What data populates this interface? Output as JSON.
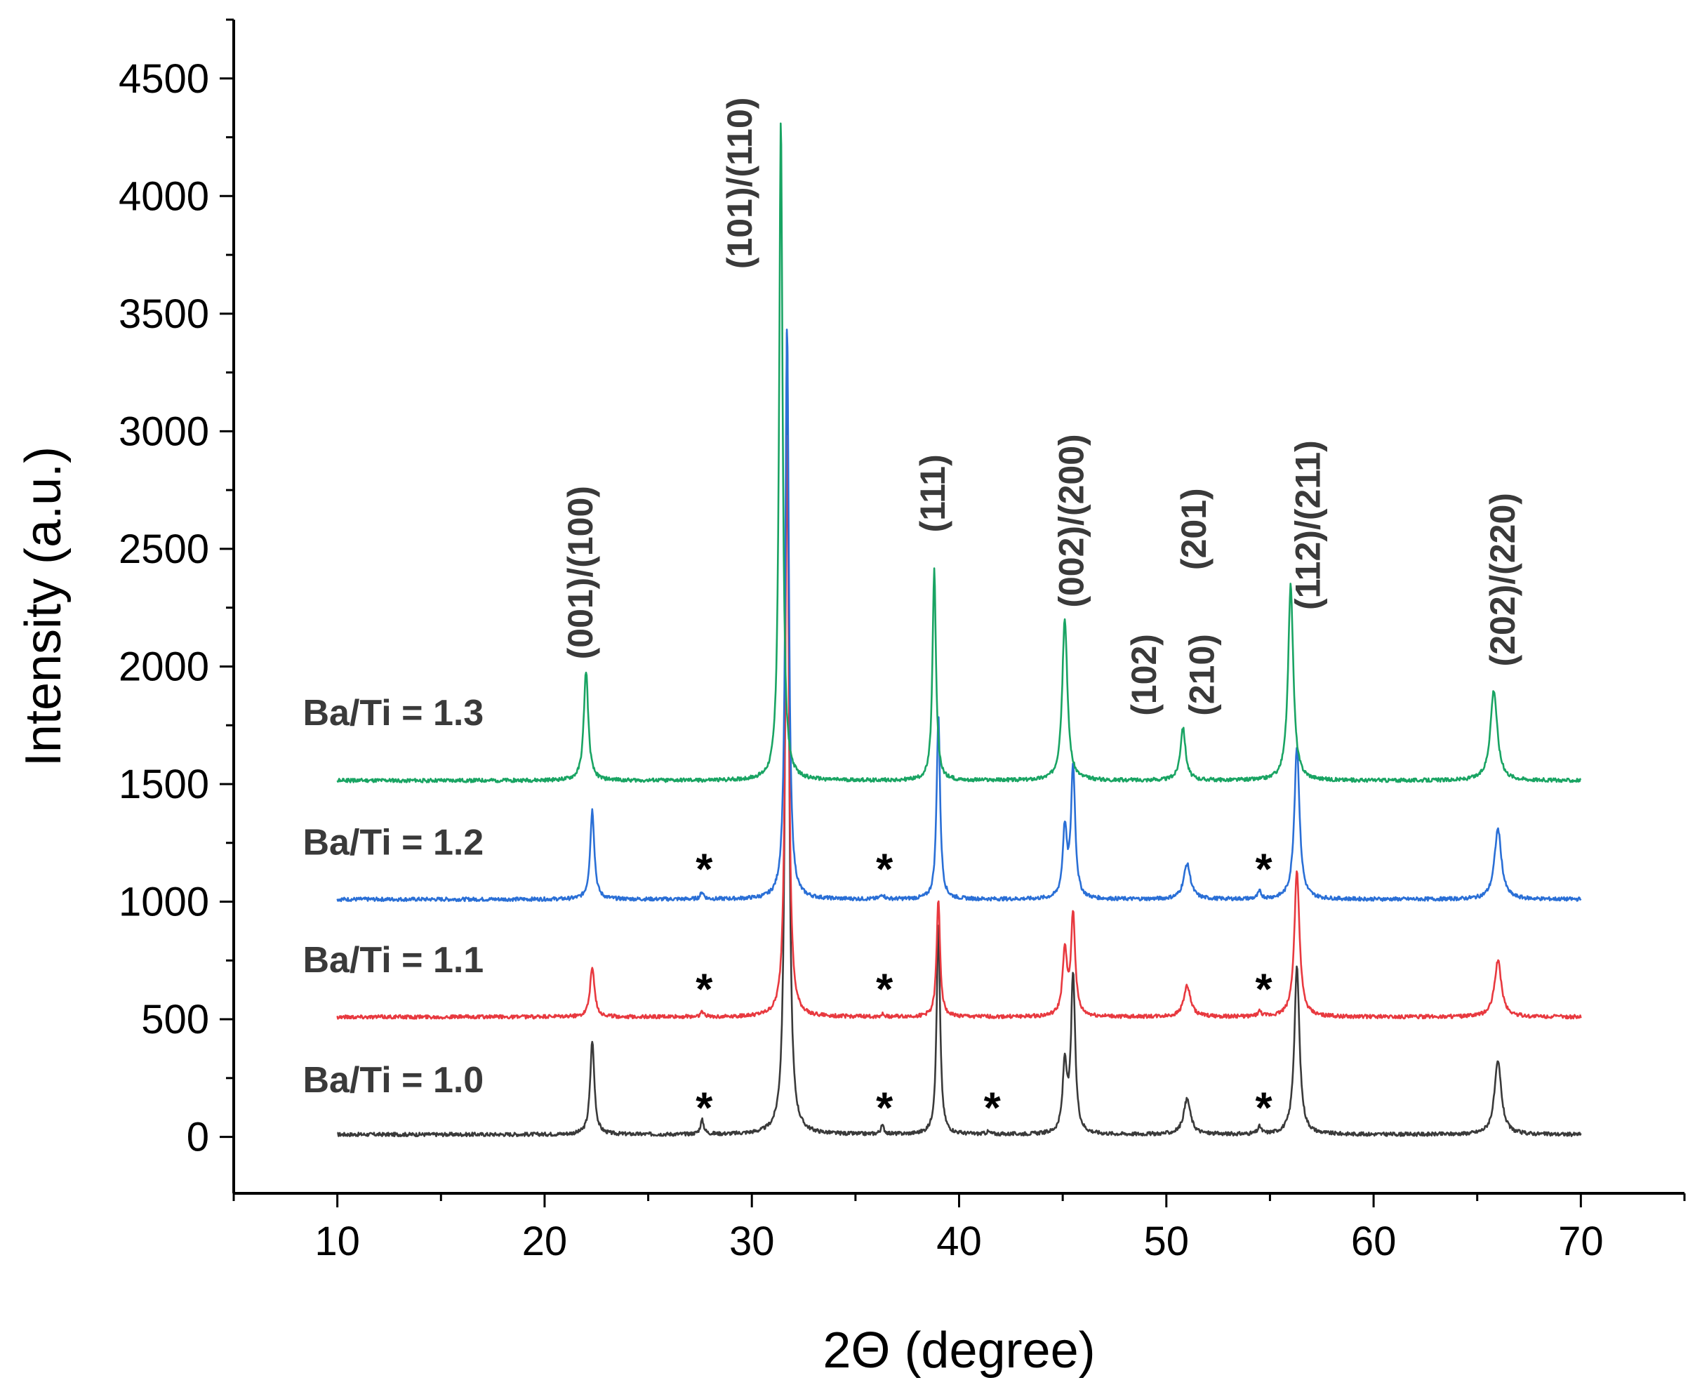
{
  "chart_data": {
    "type": "line",
    "xlabel": "2Θ (degree)",
    "ylabel": "Intensity (a.u.)",
    "xlim": [
      5,
      75
    ],
    "ylim": [
      -240,
      4750
    ],
    "x_ticks": [
      10,
      20,
      30,
      40,
      50,
      60,
      70
    ],
    "y_ticks": [
      0,
      500,
      1000,
      1500,
      2000,
      2500,
      3000,
      3500,
      4000,
      4500
    ],
    "x_range": [
      10,
      70
    ],
    "grid": false,
    "legend": "none",
    "series": [
      {
        "name": "Ba/Ti = 1.0",
        "color": "#3a3a3a",
        "baseline": 10,
        "peaks": [
          [
            22.3,
            410,
            0.12
          ],
          [
            27.6,
            70,
            0.1
          ],
          [
            31.7,
            3450,
            0.1
          ],
          [
            36.3,
            45,
            0.1
          ],
          [
            39.0,
            900,
            0.1
          ],
          [
            41.4,
            20,
            0.1
          ],
          [
            45.1,
            300,
            0.12
          ],
          [
            45.5,
            680,
            0.12
          ],
          [
            51.0,
            160,
            0.2
          ],
          [
            54.5,
            40,
            0.1
          ],
          [
            56.3,
            720,
            0.15
          ],
          [
            66.0,
            320,
            0.2
          ]
        ]
      },
      {
        "name": "Ba/Ti = 1.1",
        "color": "#e8393f",
        "baseline": 510,
        "peaks": [
          [
            22.3,
            720,
            0.13
          ],
          [
            27.6,
            530,
            0.1
          ],
          [
            31.7,
            3000,
            0.1
          ],
          [
            36.3,
            520,
            0.1
          ],
          [
            39.0,
            1010,
            0.1
          ],
          [
            45.1,
            780,
            0.13
          ],
          [
            45.5,
            940,
            0.12
          ],
          [
            51.0,
            640,
            0.2
          ],
          [
            54.5,
            530,
            0.1
          ],
          [
            56.3,
            1130,
            0.15
          ],
          [
            66.0,
            750,
            0.2
          ]
        ]
      },
      {
        "name": "Ba/Ti = 1.2",
        "color": "#2a6fd6",
        "baseline": 1010,
        "peaks": [
          [
            22.3,
            1390,
            0.12
          ],
          [
            27.6,
            1040,
            0.1
          ],
          [
            31.7,
            3450,
            0.1
          ],
          [
            36.3,
            1030,
            0.1
          ],
          [
            39.0,
            1790,
            0.1
          ],
          [
            45.1,
            1300,
            0.12
          ],
          [
            45.5,
            1570,
            0.12
          ],
          [
            51.0,
            1160,
            0.2
          ],
          [
            54.5,
            1040,
            0.1
          ],
          [
            56.3,
            1660,
            0.15
          ],
          [
            66.0,
            1310,
            0.2
          ]
        ]
      },
      {
        "name": "Ba/Ti = 1.3",
        "color": "#19a463",
        "baseline": 1515,
        "peaks": [
          [
            22.0,
            1980,
            0.13
          ],
          [
            31.4,
            4330,
            0.1
          ],
          [
            38.8,
            2410,
            0.1
          ],
          [
            45.1,
            2200,
            0.15
          ],
          [
            50.8,
            1740,
            0.15
          ],
          [
            56.0,
            2350,
            0.15
          ],
          [
            65.8,
            1900,
            0.2
          ]
        ]
      }
    ],
    "series_labels": [
      {
        "text": "Ba/Ti = 1.3",
        "x": 12.7,
        "y": 1750
      },
      {
        "text": "Ba/Ti = 1.2",
        "x": 12.7,
        "y": 1200
      },
      {
        "text": "Ba/Ti = 1.1",
        "x": 12.7,
        "y": 700
      },
      {
        "text": "Ba/Ti = 1.0",
        "x": 12.7,
        "y": 190
      }
    ],
    "peak_labels": [
      {
        "text": "(001)/(100)",
        "x": 22.3,
        "y": 2030
      },
      {
        "text": "(101)/(110)",
        "x": 30.0,
        "y": 3690
      },
      {
        "text": "(111)",
        "x": 39.3,
        "y": 2570
      },
      {
        "text": "(002)/(200)",
        "x": 46.0,
        "y": 2250
      },
      {
        "text": "(102)",
        "x": 49.5,
        "y": 1790
      },
      {
        "text": "(201)",
        "x": 51.9,
        "y": 2410
      },
      {
        "text": "(210)",
        "x": 52.3,
        "y": 1790
      },
      {
        "text": "(112)/(211)",
        "x": 57.4,
        "y": 2240
      },
      {
        "text": "(202)/(220)",
        "x": 66.8,
        "y": 2000
      }
    ],
    "impurity_markers": [
      {
        "text": "*",
        "x": 27.7,
        "y": 1140
      },
      {
        "text": "*",
        "x": 36.4,
        "y": 1140
      },
      {
        "text": "*",
        "x": 54.7,
        "y": 1140
      },
      {
        "text": "*",
        "x": 27.7,
        "y": 630
      },
      {
        "text": "*",
        "x": 36.4,
        "y": 630
      },
      {
        "text": "*",
        "x": 54.7,
        "y": 630
      },
      {
        "text": "*",
        "x": 27.7,
        "y": 125
      },
      {
        "text": "*",
        "x": 36.4,
        "y": 125
      },
      {
        "text": "*",
        "x": 41.6,
        "y": 125
      },
      {
        "text": "*",
        "x": 54.7,
        "y": 125
      }
    ]
  }
}
